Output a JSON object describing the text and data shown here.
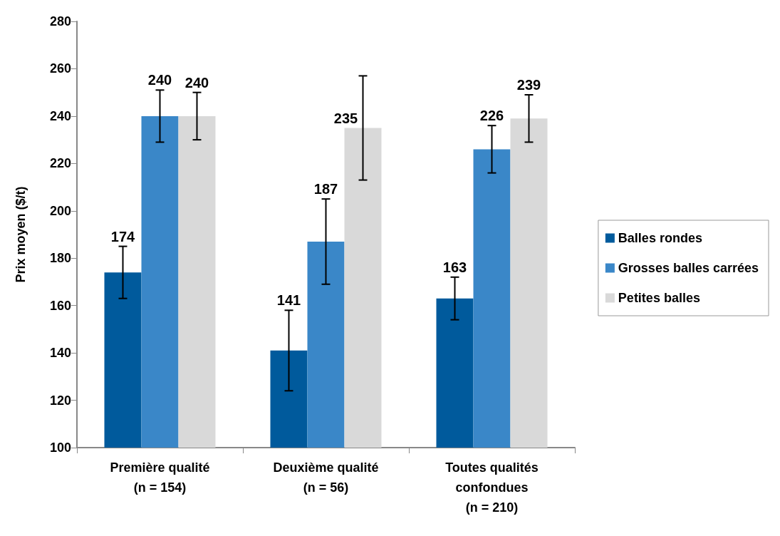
{
  "chart_data": {
    "type": "bar",
    "ylabel": "Prix moyen ($/t)",
    "categories": [
      "Première qualité\n(n = 154)",
      "Deuxième qualité\n(n = 56)",
      "Toutes qualités\nconfondues\n(n = 210)"
    ],
    "series": [
      {
        "name": "Balles rondes",
        "color": "#005a9c",
        "values": [
          174,
          141,
          163
        ],
        "errors": [
          11,
          17,
          9
        ]
      },
      {
        "name": "Grosses balles carrées",
        "color": "#3a87c8",
        "values": [
          240,
          187,
          226
        ],
        "errors": [
          11,
          18,
          10
        ]
      },
      {
        "name": "Petites balles",
        "color": "#d9d9d9",
        "values": [
          240,
          235,
          239
        ],
        "errors": [
          10,
          22,
          10
        ]
      }
    ],
    "ylim": [
      100,
      280
    ],
    "yticks": [
      100,
      120,
      140,
      160,
      180,
      200,
      220,
      240,
      260,
      280
    ],
    "data_labels": true,
    "grid": false,
    "legend": "right"
  }
}
